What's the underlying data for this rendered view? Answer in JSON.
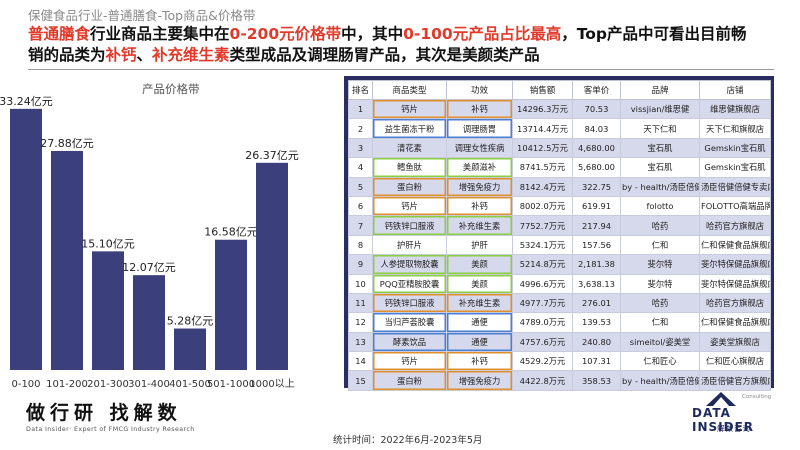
{
  "header": {
    "subtitle": "保健食品行业-普通膳食-Top商品&价格带",
    "headline_parts": [
      "普通膳食",
      "行业商品主要集中在",
      "0-200元价格带",
      "中，其中",
      "0-100元产品占比最高",
      "，Top产品中可看出目前畅销的品类为",
      "补钙",
      "、",
      "补充维生素",
      "类型成品及调理肠胃产品，其次是美颜类产品"
    ]
  },
  "chart_data": {
    "type": "bar",
    "title": "产品价格带",
    "categories": [
      "0-100",
      "101-200",
      "201-300",
      "301-400",
      "401-500",
      "501-1000",
      "1000以上"
    ],
    "values": [
      33.24,
      27.88,
      15.1,
      12.07,
      5.28,
      16.58,
      26.37
    ],
    "data_labels": [
      "33.24亿元",
      "27.88亿元",
      "15.10亿元",
      "12.07亿元",
      "5.28亿元",
      "16.58亿元",
      "26.37亿元"
    ],
    "ylim": [
      0,
      35
    ],
    "bar_color": "#3b3f7c",
    "grid": false
  },
  "table": {
    "headers": [
      "排名",
      "商品类型",
      "功效",
      "销售额",
      "客单价",
      "品牌",
      "店铺"
    ],
    "rows": [
      [
        "1",
        "钙片",
        "补钙",
        "14296.3万元",
        "70.53",
        "vissjian/维思健",
        "维思健旗舰店"
      ],
      [
        "2",
        "益生菌冻干粉",
        "调理肠胃",
        "13714.4万元",
        "84.03",
        "天下仁和",
        "天下仁和旗舰店"
      ],
      [
        "3",
        "清花素",
        "调理女性疾病",
        "10412.5万元",
        "4,680.00",
        "宝石肌",
        "Gemskin宝石肌"
      ],
      [
        "4",
        "鳕鱼肽",
        "美颜滋补",
        "8741.5万元",
        "5,680.00",
        "宝石肌",
        "Gemskin宝石肌"
      ],
      [
        "5",
        "蛋白粉",
        "增强免疫力",
        "8142.4万元",
        "322.75",
        "by - health/汤臣倍健",
        "汤臣倍健倍健专卖店"
      ],
      [
        "6",
        "钙片",
        "补钙",
        "8002.0万元",
        "619.91",
        "folotto",
        "FOLOTTO高端品牌海外购"
      ],
      [
        "7",
        "钙铁锌口服液",
        "补充维生素",
        "7752.7万元",
        "217.94",
        "哈药",
        "哈药官方旗舰店"
      ],
      [
        "8",
        "护肝片",
        "护肝",
        "5324.1万元",
        "157.56",
        "仁和",
        "仁和保健食品旗舰店"
      ],
      [
        "9",
        "人参提取物胶囊",
        "美颜",
        "5214.8万元",
        "2,181.38",
        "斐尔特",
        "斐尔特保健品旗舰店"
      ],
      [
        "10",
        "PQQ亚精胺胶囊",
        "美颜",
        "4996.6万元",
        "3,638.13",
        "斐尔特",
        "斐尔特保健品旗舰店"
      ],
      [
        "11",
        "钙铁锌口服液",
        "补充维生素",
        "4977.7万元",
        "276.01",
        "哈药",
        "哈药官方旗舰店"
      ],
      [
        "12",
        "当归芦荟胶囊",
        "通便",
        "4789.0万元",
        "139.53",
        "仁和",
        "仁和保健食品旗舰店"
      ],
      [
        "13",
        "酵素饮品",
        "通便",
        "4757.6万元",
        "240.80",
        "simeitol/姿美堂",
        "姿美堂旗舰店"
      ],
      [
        "14",
        "钙片",
        "补钙",
        "4529.2万元",
        "107.31",
        "仁和匠心",
        "仁和匠心旗舰店"
      ],
      [
        "15",
        "蛋白粉",
        "增强免疫力",
        "4422.8万元",
        "358.53",
        "by - health/汤臣倍健",
        "汤臣倍健官方旗舰店"
      ]
    ],
    "highlights": {
      "orange": [
        "1",
        "5",
        "6",
        "11",
        "14",
        "15"
      ],
      "blue": [
        "2",
        "12",
        "13"
      ],
      "green": [
        "4",
        "7",
        "9",
        "10"
      ]
    },
    "colors": {
      "panel": "#2b2d62",
      "row_alt": "#d6d9ec",
      "orange": "#e0902a",
      "blue": "#4a7fd6",
      "green": "#8bcf3e"
    }
  },
  "footer": {
    "brand_cn": "做行研 找解数",
    "brand_en": "Data Insider· Expert of FMCG Industry Research",
    "period": "统计时间：2022年6月-2023年5月",
    "logo_small": "Consulting",
    "logo_en": "DATA INSIDER",
    "logo_cn": "解数咨询"
  }
}
